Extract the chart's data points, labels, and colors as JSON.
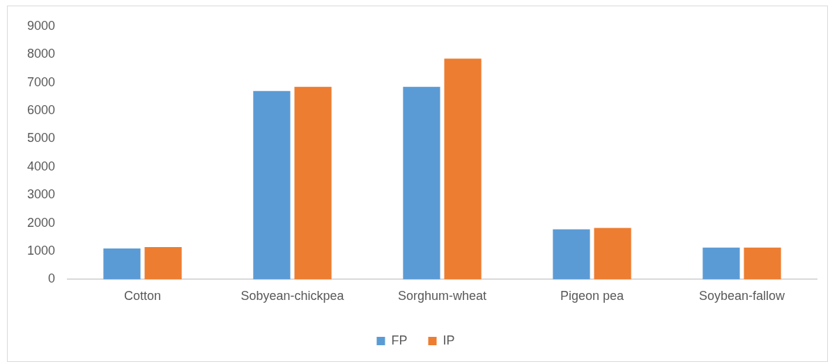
{
  "chart_data": {
    "type": "bar",
    "categories": [
      "Cotton",
      "Sobyean-chickpea",
      "Sorghum-wheat",
      "Pigeon pea",
      "Soybean-fallow"
    ],
    "series": [
      {
        "name": "FP",
        "color": "#5b9bd5",
        "values": [
          1100,
          6700,
          6850,
          1780,
          1130
        ]
      },
      {
        "name": "IP",
        "color": "#ed7d31",
        "values": [
          1150,
          6850,
          7850,
          1830,
          1130
        ]
      }
    ],
    "ylim": [
      0,
      9000
    ],
    "yticks": [
      0,
      1000,
      2000,
      3000,
      4000,
      5000,
      6000,
      7000,
      8000,
      9000
    ],
    "grid": false,
    "legend": "bottom"
  }
}
